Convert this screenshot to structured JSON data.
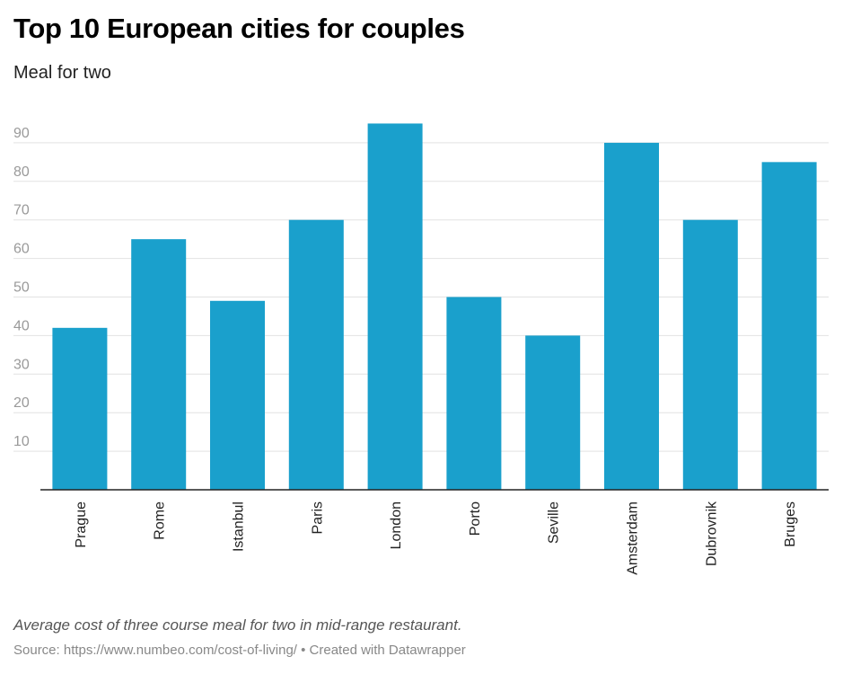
{
  "title": "Top 10 European cities for couples",
  "subtitle": "Meal for two",
  "note": "Average cost of three course meal for two in mid-range restaurant.",
  "source": "Source: https://www.numbeo.com/cost-of-living/ • Created with Datawrapper",
  "colors": {
    "bar": "#1aa0cc",
    "grid": "#e2e2e2",
    "axis": "#222222"
  },
  "chart_data": {
    "type": "bar",
    "categories": [
      "Prague",
      "Rome",
      "Istanbul",
      "Paris",
      "London",
      "Porto",
      "Seville",
      "Amsterdam",
      "Dubrovnik",
      "Bruges"
    ],
    "values": [
      42,
      65,
      49,
      70,
      95,
      50,
      40,
      90,
      70,
      85
    ],
    "yticks": [
      10,
      20,
      30,
      40,
      50,
      60,
      70,
      80,
      90
    ],
    "ylim": [
      0,
      100
    ],
    "grid": true,
    "legend": "none"
  }
}
